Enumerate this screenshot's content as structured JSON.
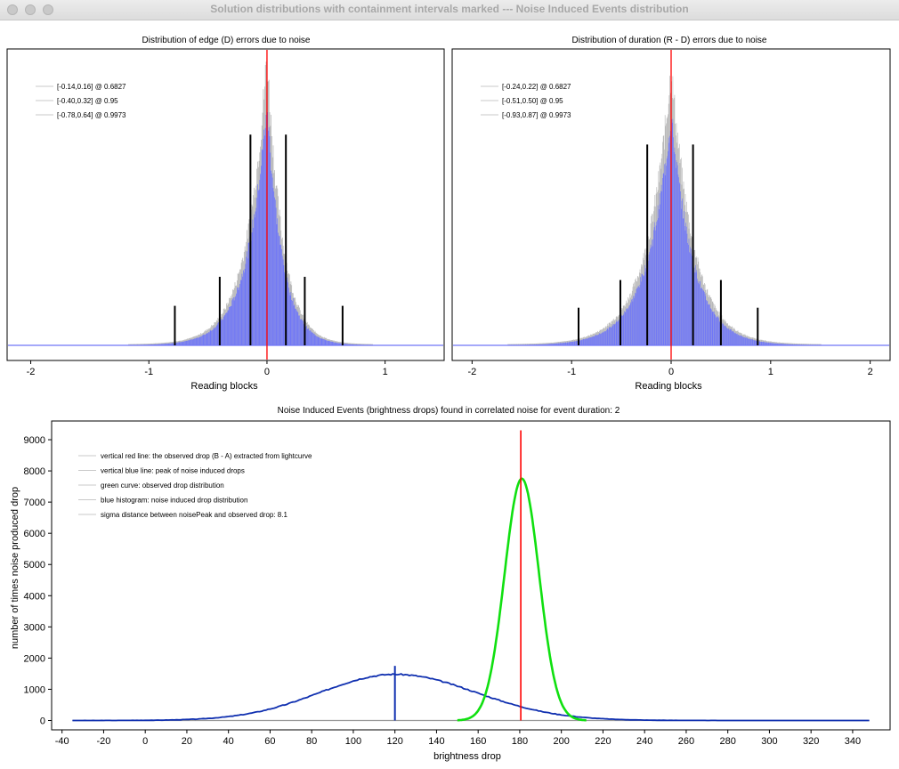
{
  "window": {
    "title": "Solution distributions with containment intervals marked --- Noise Induced Events distribution"
  },
  "colors": {
    "histogram": "#6f76f7",
    "histogram_noise": "#b8b8b8",
    "red_line": "#ff0000",
    "blue_curve": "#1030b0",
    "green_curve": "#10e010",
    "legend_line": "#c8c8c8"
  },
  "chart_data": [
    {
      "type": "bar",
      "title": "Distribution of edge (D) errors due to noise",
      "xlabel": "Reading blocks",
      "ylabel": "",
      "xlim": [
        -2.2,
        1.5
      ],
      "xticks": [
        "-2",
        "-1",
        "0",
        "1"
      ],
      "xtick_values": [
        -2,
        -1,
        0,
        1
      ],
      "grid": false,
      "legend_position": "top-left",
      "legend": [
        "[-0.14,0.16] @ 0.6827",
        "[-0.40,0.32] @ 0.95",
        "[-0.78,0.64] @ 0.9973"
      ],
      "distribution": {
        "center": 0.0,
        "sigma_left": 0.17,
        "sigma_right": 0.13,
        "shape": "laplace"
      },
      "red_line_x": 0.0,
      "interval_lines": [
        {
          "x": -0.14,
          "height_fraction": 0.8
        },
        {
          "x": 0.16,
          "height_fraction": 0.8
        },
        {
          "x": -0.4,
          "height_fraction": 0.26
        },
        {
          "x": 0.32,
          "height_fraction": 0.26
        },
        {
          "x": -0.78,
          "height_fraction": 0.15
        },
        {
          "x": 0.64,
          "height_fraction": 0.15
        }
      ]
    },
    {
      "type": "bar",
      "title": "Distribution of duration (R - D) errors due to noise",
      "xlabel": "Reading blocks",
      "ylabel": "",
      "xlim": [
        -2.2,
        2.2
      ],
      "xticks": [
        "-2",
        "-1",
        "0",
        "1",
        "2"
      ],
      "xtick_values": [
        -2,
        -1,
        0,
        1,
        2
      ],
      "grid": false,
      "legend_position": "top-left",
      "legend": [
        "[-0.24,0.22] @ 0.6827",
        "[-0.51,0.50] @ 0.95",
        "[-0.93,0.87] @ 0.9973"
      ],
      "distribution": {
        "center": 0.0,
        "sigma_left": 0.24,
        "sigma_right": 0.22,
        "shape": "laplace"
      },
      "red_line_x": 0.0,
      "interval_lines": [
        {
          "x": -0.24,
          "height_fraction": 0.8
        },
        {
          "x": 0.22,
          "height_fraction": 0.8
        },
        {
          "x": -0.51,
          "height_fraction": 0.26
        },
        {
          "x": 0.5,
          "height_fraction": 0.26
        },
        {
          "x": -0.93,
          "height_fraction": 0.15
        },
        {
          "x": 0.87,
          "height_fraction": 0.15
        }
      ]
    },
    {
      "type": "line",
      "title": "Noise Induced Events (brightness drops) found in correlated noise for event duration: 2",
      "xlabel": "brightness drop",
      "ylabel": "number of times noise produced drop",
      "xlim": [
        -45,
        358
      ],
      "ylim": [
        -300,
        9600
      ],
      "xticks": [
        "-40",
        "-20",
        "0",
        "20",
        "40",
        "60",
        "80",
        "100",
        "120",
        "140",
        "160",
        "180",
        "200",
        "220",
        "240",
        "260",
        "280",
        "300",
        "320",
        "340"
      ],
      "xtick_values": [
        -40,
        -20,
        0,
        20,
        40,
        60,
        80,
        100,
        120,
        140,
        160,
        180,
        200,
        220,
        240,
        260,
        280,
        300,
        320,
        340
      ],
      "yticks": [
        "0",
        "1000",
        "2000",
        "3000",
        "4000",
        "5000",
        "6000",
        "7000",
        "8000",
        "9000"
      ],
      "ytick_values": [
        0,
        1000,
        2000,
        3000,
        4000,
        5000,
        6000,
        7000,
        8000,
        9000
      ],
      "grid": false,
      "legend_position": "top-left",
      "legend": [
        "vertical red line: the observed drop (B - A) extracted from lightcurve",
        "vertical blue line: peak of noise induced drops",
        "green curve: observed drop distribution",
        "blue histogram: noise induced drop distribution",
        "sigma distance between noisePeak and observed drop: 8.1"
      ],
      "baseline_x_range": [
        -35,
        348
      ],
      "red_line": {
        "x": 180.5,
        "y_top": 9300
      },
      "blue_line": {
        "x": 120,
        "y_top": 1750
      },
      "series": [
        {
          "curve": "blue",
          "peak_x": 120,
          "peak_y": 1480,
          "sigma_left": 36,
          "sigma_right": 39,
          "x_range": [
            -35,
            348
          ]
        },
        {
          "curve": "green",
          "peak_x": 181,
          "peak_y": 7750,
          "sigma": 8.3,
          "x_range": [
            150,
            212
          ]
        }
      ]
    }
  ]
}
